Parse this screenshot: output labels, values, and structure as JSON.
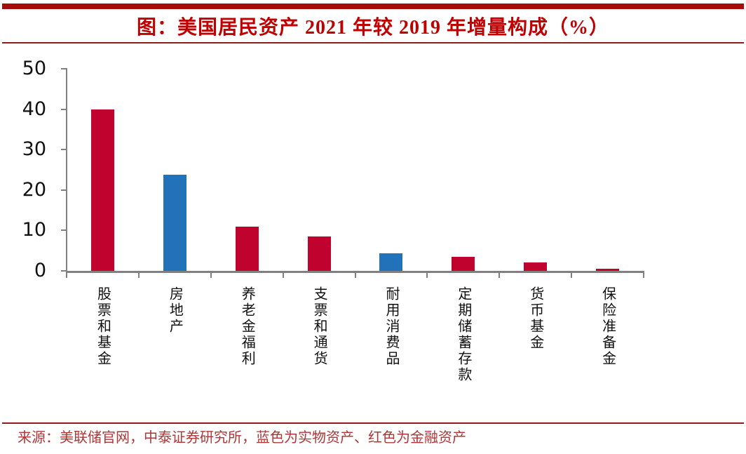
{
  "header": {
    "title": "图：美国居民资产 2021 年较 2019 年增量构成（%）",
    "title_color": "#C00000",
    "band_color": "#A40D0D"
  },
  "chart_data": {
    "type": "bar",
    "title": "图：美国居民资产 2021 年较 2019 年增量构成（%）",
    "categories": [
      "股票和基金",
      "房地产",
      "养老金福利",
      "支票和通货",
      "耐用消费品",
      "定期储蓄存款",
      "货币基金",
      "保险准备金"
    ],
    "values": [
      40,
      23.8,
      11,
      8.5,
      4.4,
      3.5,
      2,
      0.6
    ],
    "bar_colors": [
      "#C0032E",
      "#2272B9",
      "#C0032E",
      "#C0032E",
      "#2272B9",
      "#C0032E",
      "#C0032E",
      "#C0032E"
    ],
    "xlabel": "",
    "ylabel": "",
    "ylim": [
      0,
      50
    ],
    "yticks": [
      0,
      10,
      20,
      30,
      40,
      50
    ],
    "grid": false,
    "legend_position": "none",
    "color_meaning": {
      "blue": "实物资产",
      "red": "金融资产"
    }
  },
  "footer": {
    "source_note": "来源：美联储官网，中泰证券研究所，蓝色为实物资产、红色为金融资产"
  }
}
